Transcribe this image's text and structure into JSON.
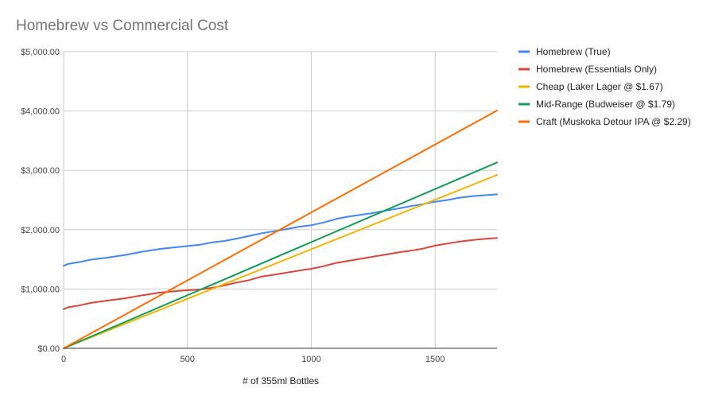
{
  "chart_data": {
    "type": "line",
    "title": "Homebrew vs Commercial Cost",
    "xlabel": "# of 355ml Bottles",
    "ylabel": "",
    "xlim": [
      0,
      1750
    ],
    "ylim": [
      0,
      5000
    ],
    "x_ticks": [
      0,
      500,
      1000,
      1500
    ],
    "x_tick_labels": [
      "0",
      "500",
      "1000",
      "1500"
    ],
    "y_ticks": [
      0,
      1000,
      2000,
      3000,
      4000,
      5000
    ],
    "y_tick_labels": [
      "$0.00",
      "$1,000.00",
      "$2,000.00",
      "$3,000.00",
      "$4,000.00",
      "$5,000.00"
    ],
    "grid": true,
    "legend_position": "right",
    "series": [
      {
        "name": "Homebrew (True)",
        "color": "#4285f4",
        "points": [
          [
            0,
            1390
          ],
          [
            20,
            1425
          ],
          [
            60,
            1450
          ],
          [
            110,
            1495
          ],
          [
            170,
            1525
          ],
          [
            250,
            1575
          ],
          [
            320,
            1630
          ],
          [
            390,
            1675
          ],
          [
            470,
            1710
          ],
          [
            550,
            1745
          ],
          [
            600,
            1785
          ],
          [
            650,
            1810
          ],
          [
            700,
            1850
          ],
          [
            750,
            1895
          ],
          [
            800,
            1940
          ],
          [
            850,
            1975
          ],
          [
            900,
            2010
          ],
          [
            950,
            2050
          ],
          [
            1000,
            2075
          ],
          [
            1050,
            2120
          ],
          [
            1100,
            2180
          ],
          [
            1150,
            2220
          ],
          [
            1200,
            2250
          ],
          [
            1250,
            2280
          ],
          [
            1300,
            2320
          ],
          [
            1350,
            2355
          ],
          [
            1400,
            2395
          ],
          [
            1450,
            2430
          ],
          [
            1500,
            2470
          ],
          [
            1550,
            2500
          ],
          [
            1600,
            2540
          ],
          [
            1650,
            2565
          ],
          [
            1700,
            2580
          ],
          [
            1750,
            2595
          ]
        ]
      },
      {
        "name": "Homebrew (Essentials Only)",
        "color": "#db4437",
        "points": [
          [
            0,
            660
          ],
          [
            20,
            695
          ],
          [
            60,
            720
          ],
          [
            110,
            765
          ],
          [
            170,
            800
          ],
          [
            250,
            845
          ],
          [
            320,
            895
          ],
          [
            390,
            940
          ],
          [
            470,
            970
          ],
          [
            550,
            990
          ],
          [
            600,
            1020
          ],
          [
            650,
            1060
          ],
          [
            700,
            1110
          ],
          [
            750,
            1150
          ],
          [
            800,
            1210
          ],
          [
            850,
            1240
          ],
          [
            900,
            1275
          ],
          [
            950,
            1310
          ],
          [
            1000,
            1340
          ],
          [
            1050,
            1385
          ],
          [
            1100,
            1440
          ],
          [
            1150,
            1475
          ],
          [
            1200,
            1510
          ],
          [
            1250,
            1545
          ],
          [
            1300,
            1580
          ],
          [
            1350,
            1615
          ],
          [
            1400,
            1645
          ],
          [
            1450,
            1680
          ],
          [
            1500,
            1730
          ],
          [
            1550,
            1765
          ],
          [
            1600,
            1800
          ],
          [
            1650,
            1825
          ],
          [
            1700,
            1845
          ],
          [
            1750,
            1860
          ]
        ]
      },
      {
        "name": "Cheap (Laker Lager @ $1.67)",
        "color": "#f4b400",
        "points": [
          [
            0,
            0
          ],
          [
            1750,
            2922.5
          ]
        ]
      },
      {
        "name": "Mid-Range (Budweiser @ $1.79)",
        "color": "#0f9d58",
        "points": [
          [
            0,
            0
          ],
          [
            1750,
            3132.5
          ]
        ]
      },
      {
        "name": "Craft (Muskoka Detour IPA @ $2.29)",
        "color": "#ff6d01",
        "points": [
          [
            0,
            0
          ],
          [
            1750,
            4007.5
          ]
        ]
      }
    ]
  }
}
